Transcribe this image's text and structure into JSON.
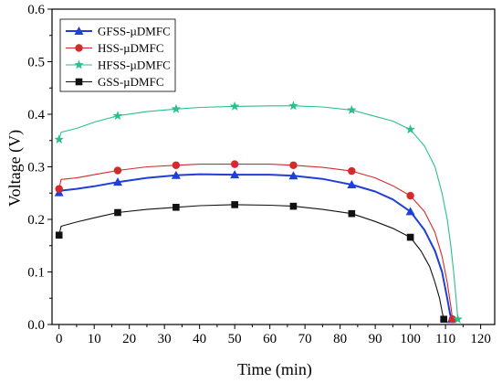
{
  "chart_data": {
    "type": "line",
    "xlabel": "Time (min)",
    "ylabel": "Voltage (V)",
    "xlim": [
      -2,
      124
    ],
    "ylim": [
      0,
      0.6
    ],
    "xticks": [
      0,
      10,
      20,
      30,
      40,
      50,
      60,
      70,
      80,
      90,
      100,
      110,
      120
    ],
    "yticks": [
      0.0,
      0.1,
      0.2,
      0.3,
      0.4,
      0.5,
      0.6
    ],
    "xtick_labels": [
      "0",
      "10",
      "20",
      "30",
      "40",
      "50",
      "60",
      "70",
      "80",
      "90",
      "100",
      "110",
      "120"
    ],
    "ytick_labels": [
      "0.0",
      "0.1",
      "0.2",
      "0.3",
      "0.4",
      "0.5",
      "0.6"
    ],
    "grid": false,
    "legend_position": "top-left",
    "series": [
      {
        "name": "GFSS-µDMFC",
        "color": "#1f3fd6",
        "marker": "triangle",
        "markers": [
          [
            0,
            0.251
          ],
          [
            16.7,
            0.271
          ],
          [
            33.3,
            0.284
          ],
          [
            50,
            0.285
          ],
          [
            66.7,
            0.283
          ],
          [
            83.3,
            0.266
          ],
          [
            100,
            0.215
          ],
          [
            111.7,
            0.01
          ]
        ],
        "line": [
          [
            0,
            0.251
          ],
          [
            1,
            0.255
          ],
          [
            5,
            0.258
          ],
          [
            10,
            0.263
          ],
          [
            16.7,
            0.271
          ],
          [
            25,
            0.279
          ],
          [
            33.3,
            0.284
          ],
          [
            40,
            0.286
          ],
          [
            50,
            0.285
          ],
          [
            60,
            0.285
          ],
          [
            66.7,
            0.283
          ],
          [
            75,
            0.277
          ],
          [
            83.3,
            0.266
          ],
          [
            90,
            0.253
          ],
          [
            95,
            0.238
          ],
          [
            100,
            0.215
          ],
          [
            104,
            0.18
          ],
          [
            107,
            0.14
          ],
          [
            109,
            0.1
          ],
          [
            110.5,
            0.05
          ],
          [
            111.3,
            0.02
          ],
          [
            111.7,
            0.01
          ]
        ]
      },
      {
        "name": "HSS-µDMFC",
        "color": "#d62a2a",
        "marker": "circle",
        "markers": [
          [
            0,
            0.258
          ],
          [
            16.7,
            0.293
          ],
          [
            33.3,
            0.303
          ],
          [
            50,
            0.305
          ],
          [
            66.7,
            0.303
          ],
          [
            83.3,
            0.292
          ],
          [
            100,
            0.245
          ],
          [
            112,
            0.01
          ]
        ],
        "line": [
          [
            0,
            0.258
          ],
          [
            0.6,
            0.276
          ],
          [
            5,
            0.279
          ],
          [
            10,
            0.285
          ],
          [
            16.7,
            0.293
          ],
          [
            25,
            0.3
          ],
          [
            33.3,
            0.303
          ],
          [
            40,
            0.305
          ],
          [
            50,
            0.305
          ],
          [
            60,
            0.305
          ],
          [
            66.7,
            0.303
          ],
          [
            75,
            0.299
          ],
          [
            83.3,
            0.292
          ],
          [
            90,
            0.279
          ],
          [
            95,
            0.264
          ],
          [
            100,
            0.245
          ],
          [
            104,
            0.215
          ],
          [
            107,
            0.175
          ],
          [
            109,
            0.13
          ],
          [
            110.5,
            0.08
          ],
          [
            111.5,
            0.035
          ],
          [
            112,
            0.01
          ]
        ]
      },
      {
        "name": "HFSS-µDMFC",
        "color": "#2bbf8c",
        "marker": "star",
        "markers": [
          [
            0,
            0.352
          ],
          [
            16.7,
            0.397
          ],
          [
            33.3,
            0.41
          ],
          [
            50,
            0.415
          ],
          [
            66.7,
            0.416
          ],
          [
            83.3,
            0.408
          ],
          [
            100,
            0.371
          ],
          [
            113.5,
            0.01
          ]
        ],
        "line": [
          [
            0,
            0.352
          ],
          [
            0.6,
            0.366
          ],
          [
            5,
            0.373
          ],
          [
            10,
            0.385
          ],
          [
            16.7,
            0.397
          ],
          [
            25,
            0.405
          ],
          [
            33.3,
            0.41
          ],
          [
            40,
            0.413
          ],
          [
            50,
            0.415
          ],
          [
            60,
            0.416
          ],
          [
            66.7,
            0.416
          ],
          [
            75,
            0.414
          ],
          [
            83.3,
            0.408
          ],
          [
            90,
            0.396
          ],
          [
            95,
            0.387
          ],
          [
            100,
            0.371
          ],
          [
            104,
            0.34
          ],
          [
            107,
            0.3
          ],
          [
            109,
            0.25
          ],
          [
            110.5,
            0.2
          ],
          [
            111.5,
            0.15
          ],
          [
            112.3,
            0.1
          ],
          [
            113,
            0.05
          ],
          [
            113.5,
            0.01
          ]
        ]
      },
      {
        "name": "GSS-µDMFC",
        "color": "#111111",
        "marker": "square",
        "markers": [
          [
            0,
            0.17
          ],
          [
            16.7,
            0.213
          ],
          [
            33.3,
            0.223
          ],
          [
            50,
            0.228
          ],
          [
            66.7,
            0.225
          ],
          [
            83.3,
            0.211
          ],
          [
            100,
            0.166
          ],
          [
            109.5,
            0.01
          ]
        ],
        "line": [
          [
            0,
            0.17
          ],
          [
            0.6,
            0.187
          ],
          [
            5,
            0.195
          ],
          [
            10,
            0.203
          ],
          [
            16.7,
            0.213
          ],
          [
            25,
            0.219
          ],
          [
            33.3,
            0.223
          ],
          [
            40,
            0.226
          ],
          [
            50,
            0.228
          ],
          [
            60,
            0.227
          ],
          [
            66.7,
            0.225
          ],
          [
            75,
            0.219
          ],
          [
            83.3,
            0.211
          ],
          [
            90,
            0.196
          ],
          [
            95,
            0.183
          ],
          [
            100,
            0.166
          ],
          [
            103,
            0.14
          ],
          [
            105.5,
            0.11
          ],
          [
            107,
            0.08
          ],
          [
            108.3,
            0.05
          ],
          [
            109,
            0.025
          ],
          [
            109.5,
            0.01
          ]
        ]
      }
    ]
  }
}
